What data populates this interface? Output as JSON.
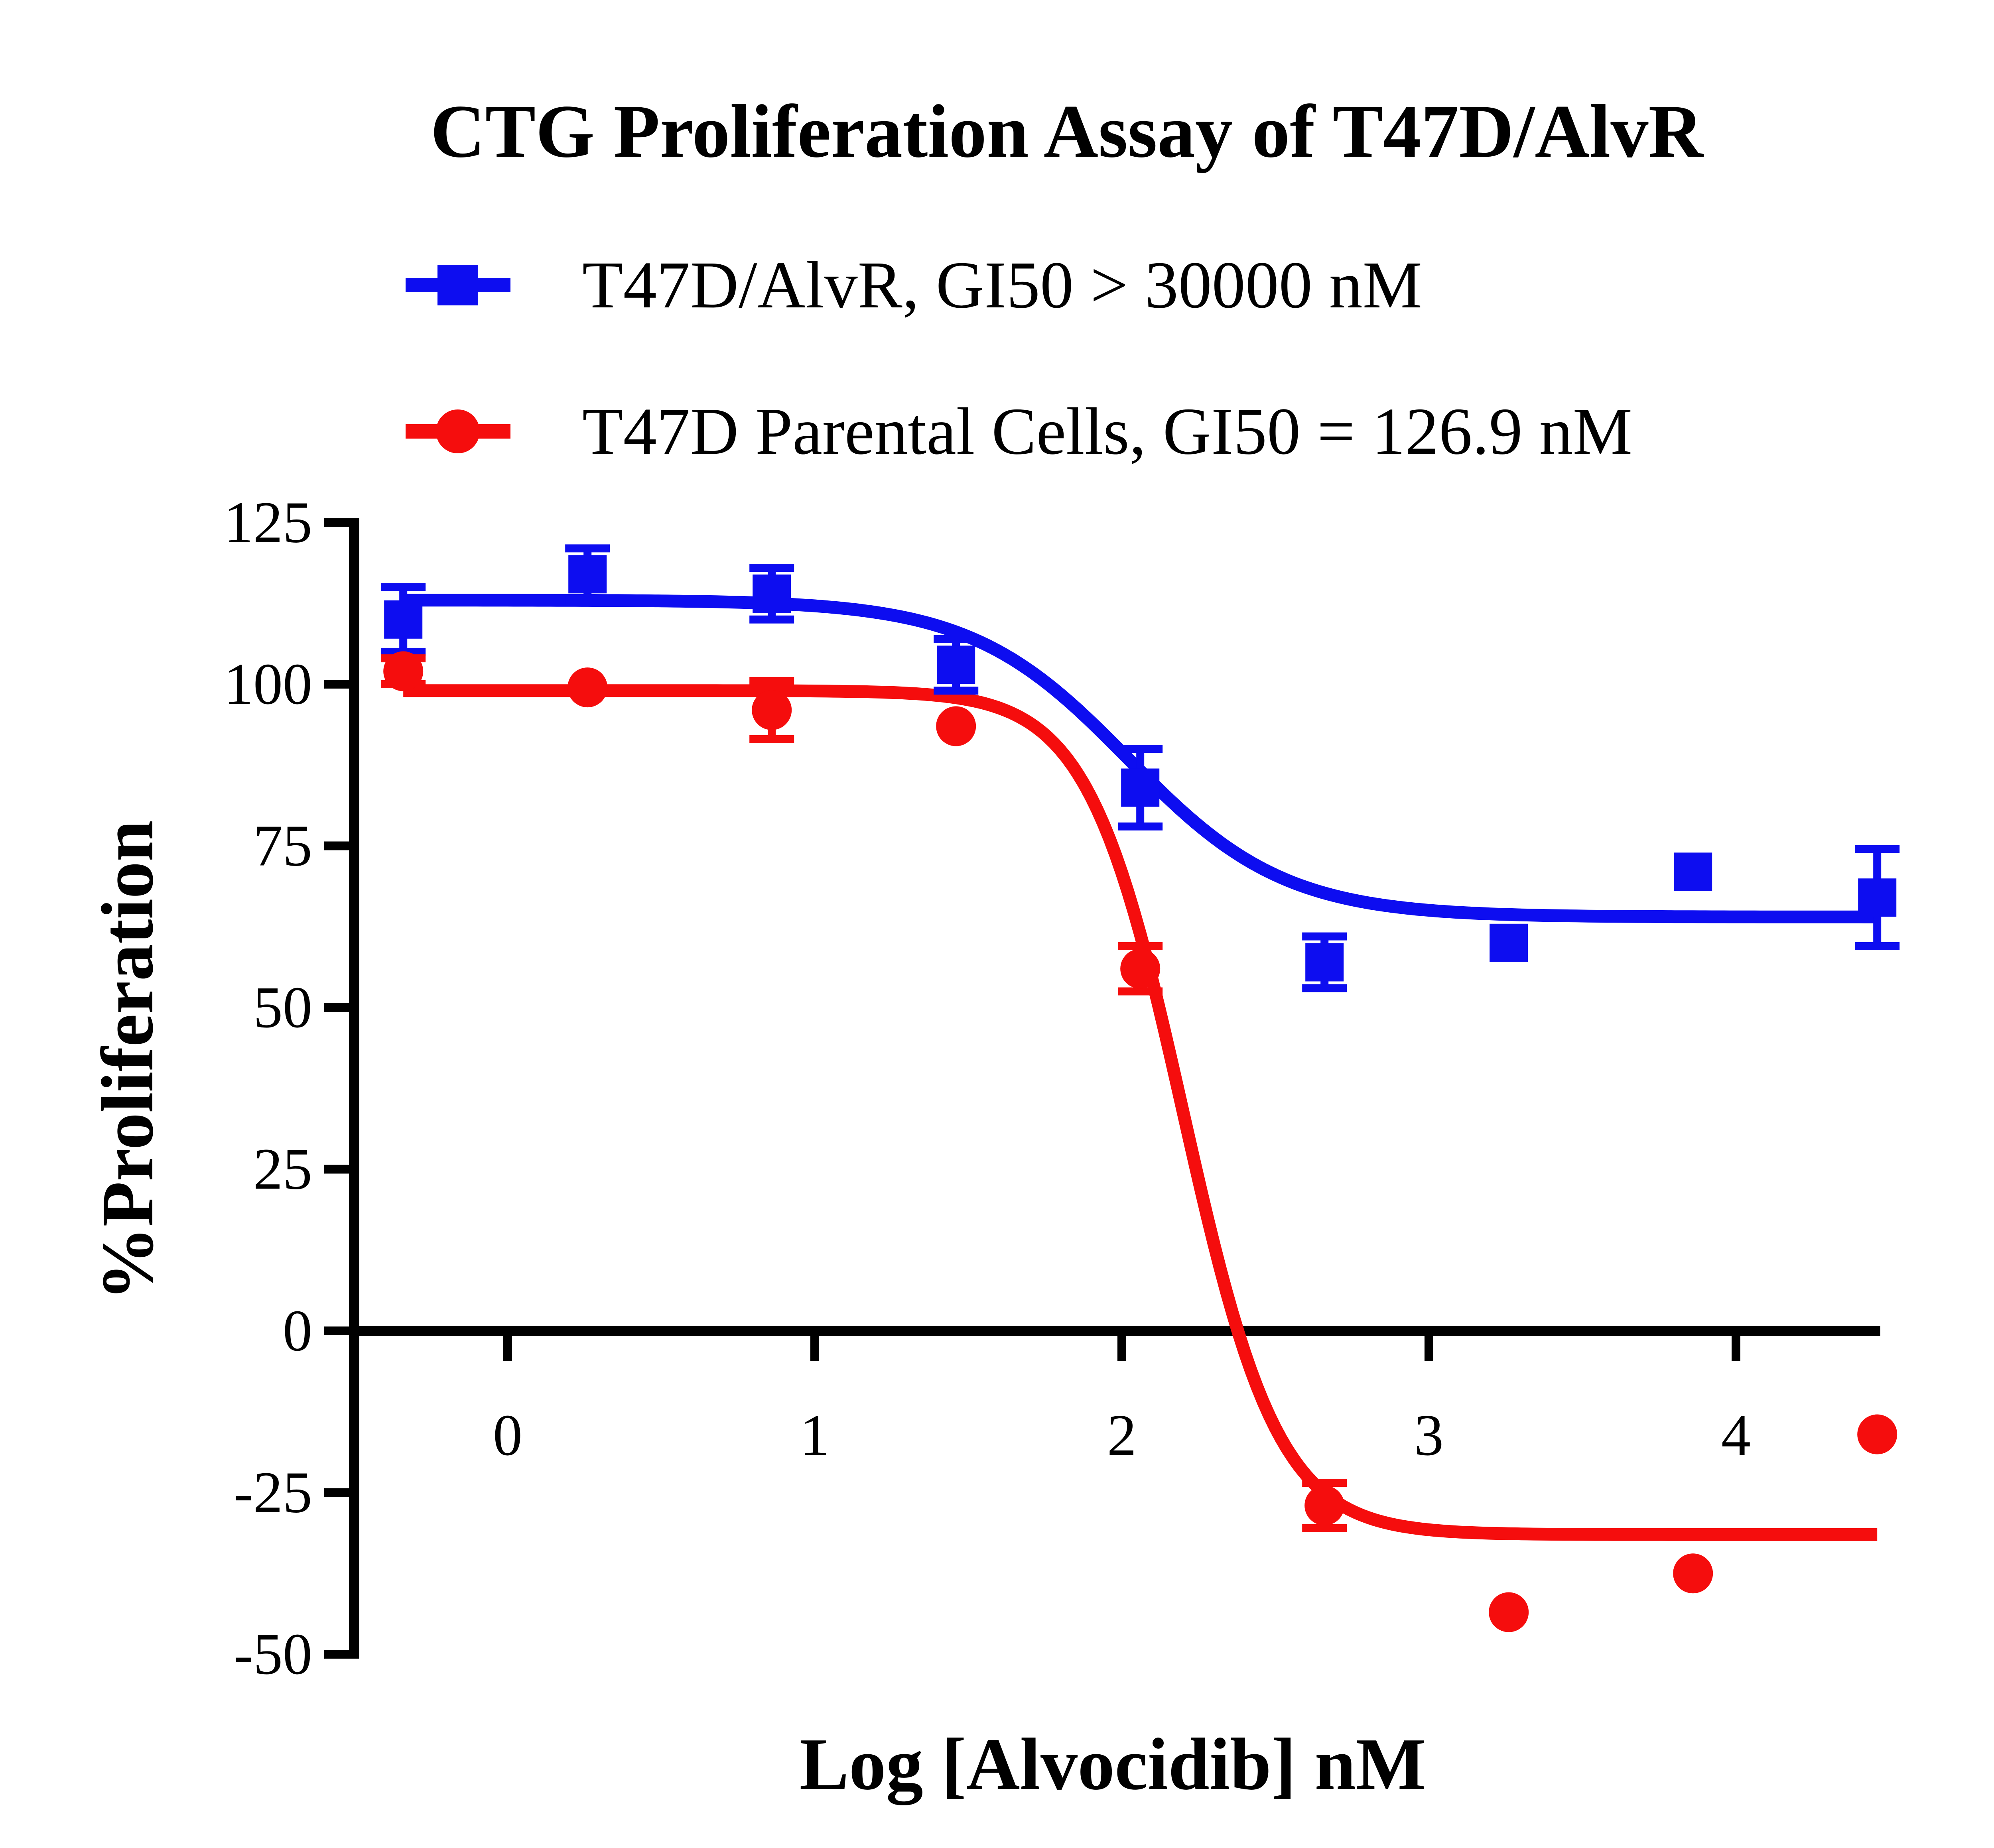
{
  "chart_data": {
    "type": "scatter",
    "subtype": "dose-response-curves",
    "title": "CTG Proliferation Assay of T47D/AlvR",
    "xlabel": "Log [Alvocidib] nM",
    "ylabel": "%Proliferation",
    "xlim": [
      -0.5,
      4.47
    ],
    "ylim": [
      -50,
      125
    ],
    "x_tick_labels": [
      "0",
      "1",
      "2",
      "3",
      "4"
    ],
    "x_ticks": [
      0,
      1,
      2,
      3,
      4
    ],
    "y_tick_labels": [
      "125",
      "100",
      "75",
      "50",
      "25",
      "0",
      "-25",
      "-50"
    ],
    "y_ticks": [
      125,
      100,
      75,
      50,
      25,
      0,
      -25,
      -50
    ],
    "grid": false,
    "legend_position": "top-left-above-plot",
    "background_color": "#ffffff",
    "axis_color": "#000000",
    "series": [
      {
        "name": "T47D/AlvR, GI50 > 30000 nM",
        "color": "#0D0DF0",
        "marker": "square",
        "x": [
          -0.34,
          0.26,
          0.86,
          1.46,
          2.06,
          2.66,
          3.26,
          3.86,
          4.46
        ],
        "y": [
          110,
          117,
          114,
          103,
          84,
          57,
          60,
          71,
          67
        ],
        "y_err": [
          5,
          4,
          4,
          4,
          6,
          4,
          0,
          0,
          7.5
        ],
        "fit_curve": {
          "model": "4PL-sigmoid",
          "top": 113,
          "bottom": 64,
          "logec50": 2.02,
          "hillslope": 1.7
        }
      },
      {
        "name": "T47D Parental Cells, GI50 = 126.9 nM",
        "color": "#F50D0D",
        "marker": "circle",
        "x": [
          -0.34,
          0.26,
          0.86,
          1.46,
          2.06,
          2.66,
          3.26,
          3.86,
          4.46
        ],
        "y": [
          102,
          99.5,
          96,
          93.5,
          56,
          -27,
          -43.5,
          -37.5,
          -16
        ],
        "y_err": [
          2,
          0,
          4.5,
          0,
          3.5,
          3.5,
          0,
          0,
          0
        ],
        "fit_curve": {
          "model": "4PL-sigmoid",
          "top": 99,
          "bottom": -31.5,
          "logec50": 2.2,
          "hillslope": 2.8
        }
      }
    ]
  }
}
